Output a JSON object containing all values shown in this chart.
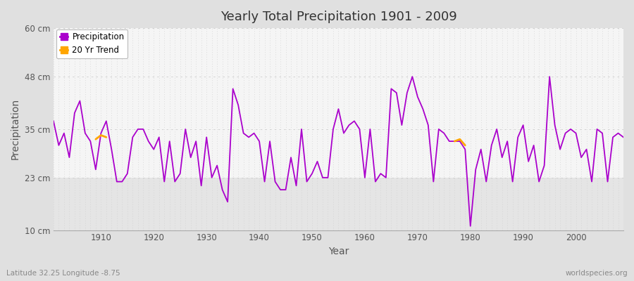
{
  "title": "Yearly Total Precipitation 1901 - 2009",
  "xlabel": "Year",
  "ylabel": "Precipitation",
  "subtitle_left": "Latitude 32.25 Longitude -8.75",
  "subtitle_right": "worldspecies.org",
  "ylim": [
    10,
    60
  ],
  "yticks": [
    10,
    23,
    35,
    48,
    60
  ],
  "ytick_labels": [
    "10 cm",
    "23 cm",
    "35 cm",
    "48 cm",
    "60 cm"
  ],
  "line_color": "#AA00CC",
  "trend_color": "#FFA500",
  "plot_bg_upper": "#F5F5F5",
  "plot_bg_lower": "#E5E5E5",
  "fig_bg_color": "#E0E0E0",
  "grid_color": "#CCCCCC",
  "years": [
    1901,
    1902,
    1903,
    1904,
    1905,
    1906,
    1907,
    1908,
    1909,
    1910,
    1911,
    1912,
    1913,
    1914,
    1915,
    1916,
    1917,
    1918,
    1919,
    1920,
    1921,
    1922,
    1923,
    1924,
    1925,
    1926,
    1927,
    1928,
    1929,
    1930,
    1931,
    1932,
    1933,
    1934,
    1935,
    1936,
    1937,
    1938,
    1939,
    1940,
    1941,
    1942,
    1943,
    1944,
    1945,
    1946,
    1947,
    1948,
    1949,
    1950,
    1951,
    1952,
    1953,
    1954,
    1955,
    1956,
    1957,
    1958,
    1959,
    1960,
    1961,
    1962,
    1963,
    1964,
    1965,
    1966,
    1967,
    1968,
    1969,
    1970,
    1971,
    1972,
    1973,
    1974,
    1975,
    1976,
    1977,
    1978,
    1979,
    1980,
    1981,
    1982,
    1983,
    1984,
    1985,
    1986,
    1987,
    1988,
    1989,
    1990,
    1991,
    1992,
    1993,
    1994,
    1995,
    1996,
    1997,
    1998,
    1999,
    2000,
    2001,
    2002,
    2003,
    2004,
    2005,
    2006,
    2007,
    2008,
    2009
  ],
  "precip": [
    37,
    31,
    34,
    28,
    39,
    42,
    34,
    32,
    25,
    34,
    37,
    30,
    22,
    22,
    24,
    33,
    35,
    35,
    32,
    30,
    33,
    22,
    32,
    22,
    24,
    35,
    28,
    32,
    21,
    33,
    23,
    26,
    20,
    17,
    45,
    41,
    34,
    33,
    34,
    32,
    22,
    32,
    22,
    20,
    20,
    28,
    21,
    35,
    22,
    24,
    27,
    23,
    23,
    35,
    40,
    34,
    36,
    37,
    35,
    23,
    35,
    22,
    24,
    23,
    45,
    44,
    36,
    44,
    48,
    43,
    40,
    36,
    22,
    35,
    34,
    32,
    32,
    32,
    30,
    11,
    25,
    30,
    22,
    31,
    35,
    28,
    32,
    22,
    33,
    36,
    27,
    31,
    22,
    26,
    48,
    36,
    30,
    34,
    35,
    34,
    28,
    30,
    22,
    35,
    34,
    22,
    33,
    34,
    33
  ],
  "trend_seg1_years": [
    1909,
    1910,
    1911
  ],
  "trend_seg1_vals": [
    32.5,
    33.5,
    33.0
  ],
  "trend_seg2_years": [
    1977,
    1978,
    1979
  ],
  "trend_seg2_vals": [
    32.0,
    32.5,
    31.0
  ]
}
